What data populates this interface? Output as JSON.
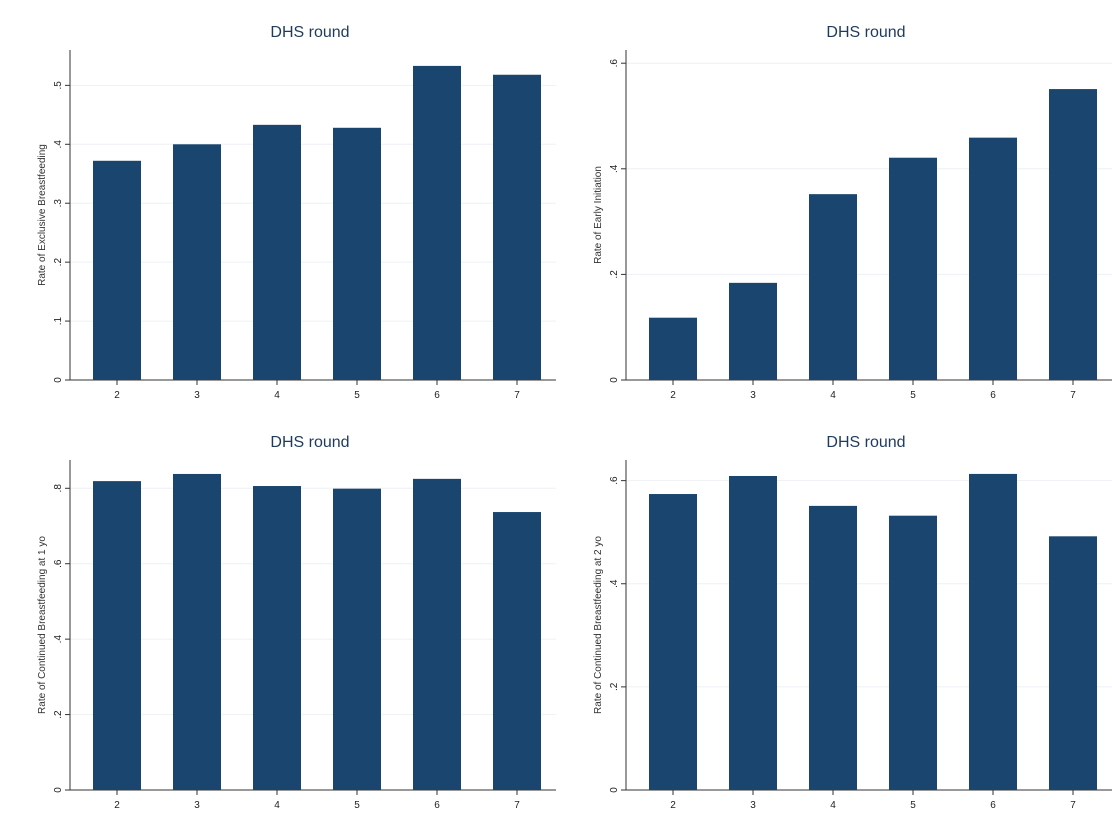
{
  "colors": {
    "bar": "#1a456e",
    "grid": "#eef1f5",
    "axis": "#333333",
    "panel_bg": "#ffffff",
    "page_bg": "#f7f8fa"
  },
  "chart_data": [
    {
      "type": "bar",
      "title": "DHS round",
      "ylabel": "Rate of Exclusive Breastfeeding",
      "categories": [
        "2",
        "3",
        "4",
        "5",
        "6",
        "7"
      ],
      "values": [
        0.372,
        0.4,
        0.433,
        0.428,
        0.533,
        0.518
      ],
      "ylim": [
        0,
        0.56
      ],
      "yticks": [
        0,
        0.1,
        0.2,
        0.3,
        0.4,
        0.5
      ],
      "ytick_labels": [
        "0",
        ".1",
        ".2",
        ".3",
        ".4",
        ".5"
      ],
      "grid": true
    },
    {
      "type": "bar",
      "title": "DHS round",
      "ylabel": "Rate of Early Initiation",
      "categories": [
        "2",
        "3",
        "4",
        "5",
        "6",
        "7"
      ],
      "values": [
        0.118,
        0.184,
        0.352,
        0.421,
        0.459,
        0.551
      ],
      "ylim": [
        0,
        0.625
      ],
      "yticks": [
        0,
        0.2,
        0.4,
        0.6
      ],
      "ytick_labels": [
        "0",
        ".2",
        ".4",
        ".6"
      ],
      "grid": true
    },
    {
      "type": "bar",
      "title": "DHS round",
      "ylabel": "Rate of Continued Breastfeeding at 1 yo",
      "categories": [
        "2",
        "3",
        "4",
        "5",
        "6",
        "7"
      ],
      "values": [
        0.819,
        0.838,
        0.806,
        0.799,
        0.825,
        0.737
      ],
      "ylim": [
        0,
        0.875
      ],
      "yticks": [
        0,
        0.2,
        0.4,
        0.6,
        0.8
      ],
      "ytick_labels": [
        "0",
        ".2",
        ".4",
        ".6",
        ".8"
      ],
      "grid": true
    },
    {
      "type": "bar",
      "title": "DHS round",
      "ylabel": "Rate of Continued Breastfeeding at 2 yo",
      "categories": [
        "2",
        "3",
        "4",
        "5",
        "6",
        "7"
      ],
      "values": [
        0.574,
        0.609,
        0.551,
        0.532,
        0.613,
        0.492
      ],
      "ylim": [
        0,
        0.64
      ],
      "yticks": [
        0,
        0.2,
        0.4,
        0.6
      ],
      "ytick_labels": [
        "0",
        ".2",
        ".4",
        ".6"
      ],
      "grid": true
    }
  ]
}
